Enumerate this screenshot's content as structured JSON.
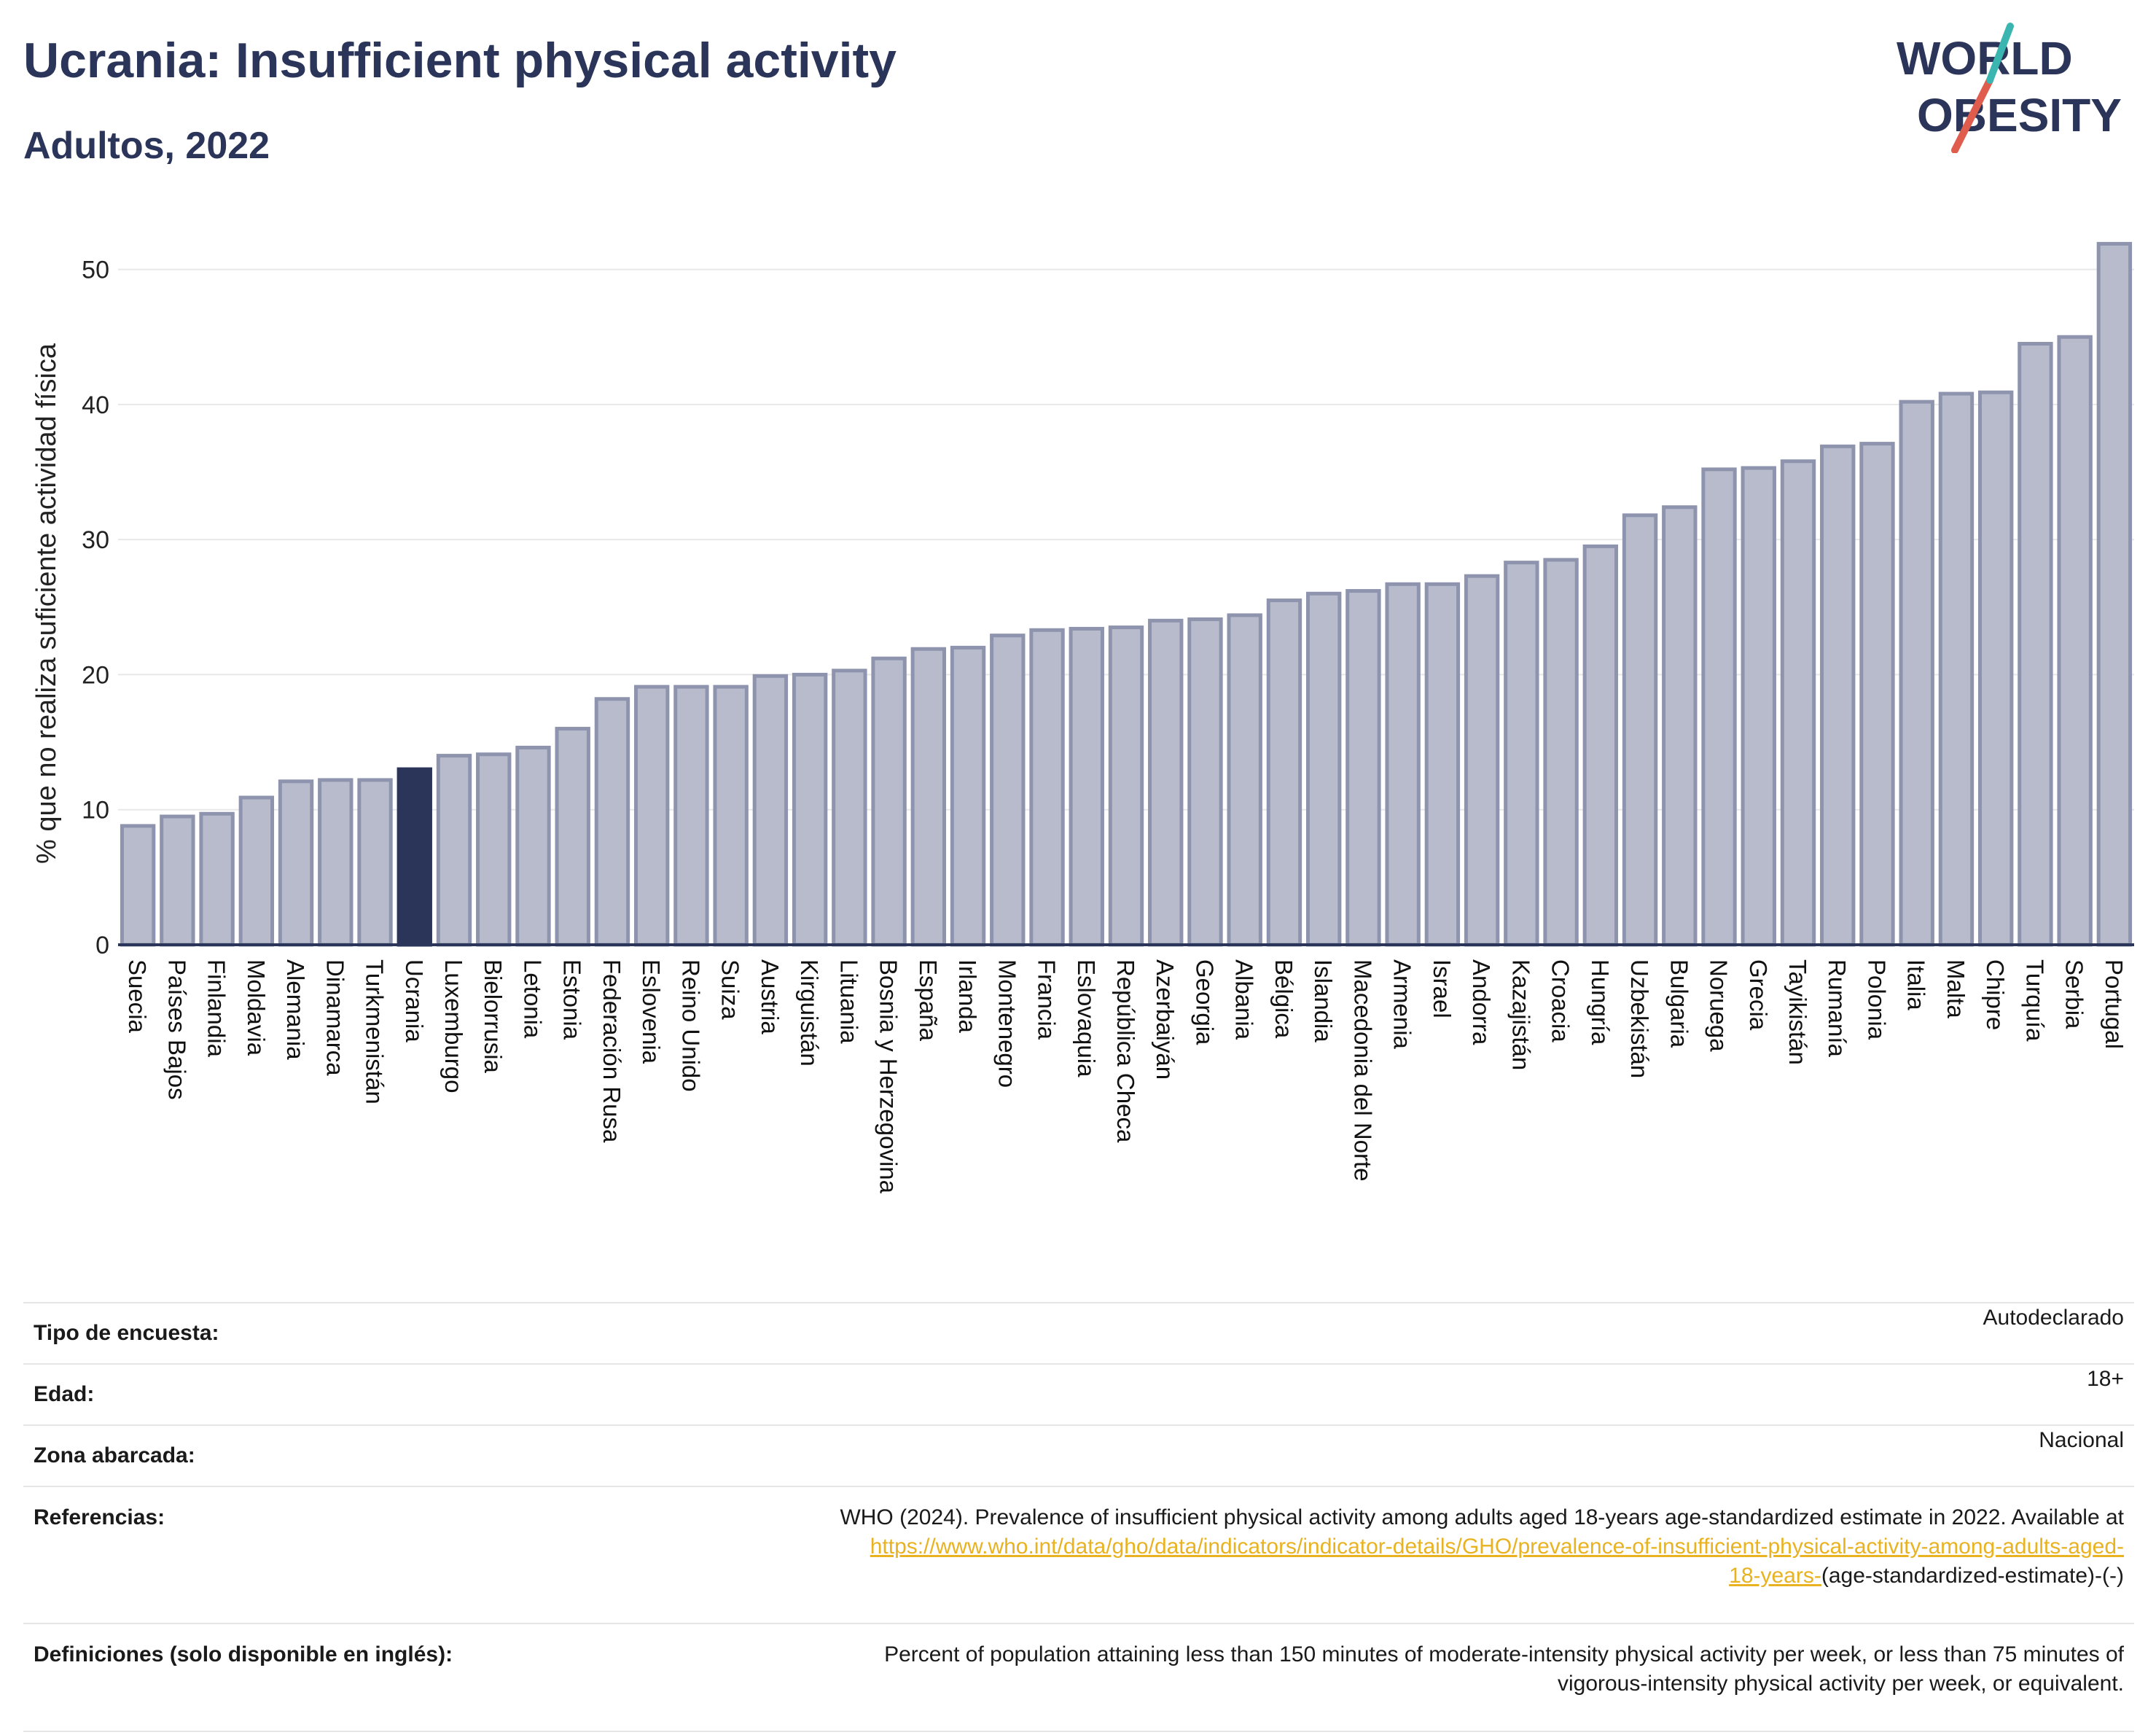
{
  "header": {
    "title": "Ucrania: Insufficient physical activity",
    "subtitle": "Adultos, 2022"
  },
  "logo": {
    "line1": "WORLD",
    "line2": "OBESITY",
    "colors": {
      "text": "#2b3459",
      "accent_red": "#e05c4c",
      "accent_teal": "#3ab5b0"
    }
  },
  "colors": {
    "bar": "#b7bbcc",
    "bar_border": "#8e94ad",
    "highlight": "#2b3459",
    "axis": "#2b3459",
    "grid": "#e8e8e8"
  },
  "chart_data": {
    "type": "bar",
    "title": "Ucrania: Insufficient physical activity",
    "subtitle": "Adultos, 2022",
    "xlabel": "",
    "ylabel": "% que no realiza suficiente actividad física",
    "ylim": [
      0,
      53
    ],
    "yticks": [
      0,
      10,
      20,
      30,
      40,
      50
    ],
    "grid": true,
    "highlight": "Ucrania",
    "categories": [
      "Suecia",
      "Países Bajos",
      "Finlandia",
      "Moldavia",
      "Alemania",
      "Dinamarca",
      "Turkmenistán",
      "Ucrania",
      "Luxemburgo",
      "Bielorrusia",
      "Letonia",
      "Estonia",
      "Federación Rusa",
      "Eslovenia",
      "Reino Unido",
      "Suiza",
      "Austria",
      "Kirguistán",
      "Lituania",
      "Bosnia y Herzegovina",
      "España",
      "Irlanda",
      "Montenegro",
      "Francia",
      "Eslovaquia",
      "República Checa",
      "Azerbaiyán",
      "Georgia",
      "Albania",
      "Bélgica",
      "Islandia",
      "Macedonia del Norte",
      "Armenia",
      "Israel",
      "Andorra",
      "Kazajistán",
      "Croacia",
      "Hungría",
      "Uzbekistán",
      "Bulgaria",
      "Noruega",
      "Grecia",
      "Tayikistán",
      "Rumanía",
      "Polonia",
      "Italia",
      "Malta",
      "Chipre",
      "Turquía",
      "Serbia",
      "Portugal"
    ],
    "values": [
      8.8,
      9.5,
      9.7,
      10.9,
      12.1,
      12.2,
      12.2,
      13.0,
      14.0,
      14.1,
      14.6,
      16.0,
      18.2,
      19.1,
      19.1,
      19.1,
      19.9,
      20.0,
      20.3,
      21.2,
      21.9,
      22.0,
      22.9,
      23.3,
      23.4,
      23.5,
      24.0,
      24.1,
      24.4,
      25.5,
      26.0,
      26.2,
      26.7,
      26.7,
      27.3,
      28.3,
      28.5,
      29.5,
      31.8,
      32.4,
      35.2,
      35.3,
      35.8,
      36.9,
      37.1,
      40.2,
      40.8,
      40.9,
      44.5,
      45.0,
      51.9
    ]
  },
  "info": {
    "survey_type": {
      "label": "Tipo de encuesta:",
      "value": "Autodeclarado"
    },
    "age": {
      "label": "Edad:",
      "value": "18+"
    },
    "area": {
      "label": "Zona abarcada:",
      "value": "Nacional"
    },
    "references": {
      "label": "Referencias:",
      "text": "WHO (2024). Prevalence of insufficient physical activity among adults aged 18-years age-standardized estimate in 2022. Available at",
      "link_a": "https://www.who.int/data/gho/data/indicators/indicator-details/GHO/prevalence-of-insufficient-physical-activity-among-adults-aged-",
      "link_b": "18-years-",
      "suffix": "(age-standardized-estimate)-(-)"
    },
    "definitions": {
      "label": "Definiciones (solo disponible en inglés):",
      "line1": "Percent of population attaining less than 150 minutes of moderate-intensity physical activity per week, or less than 75 minutes of",
      "line2": "vigorous-intensity physical activity per week, or equivalent."
    }
  }
}
